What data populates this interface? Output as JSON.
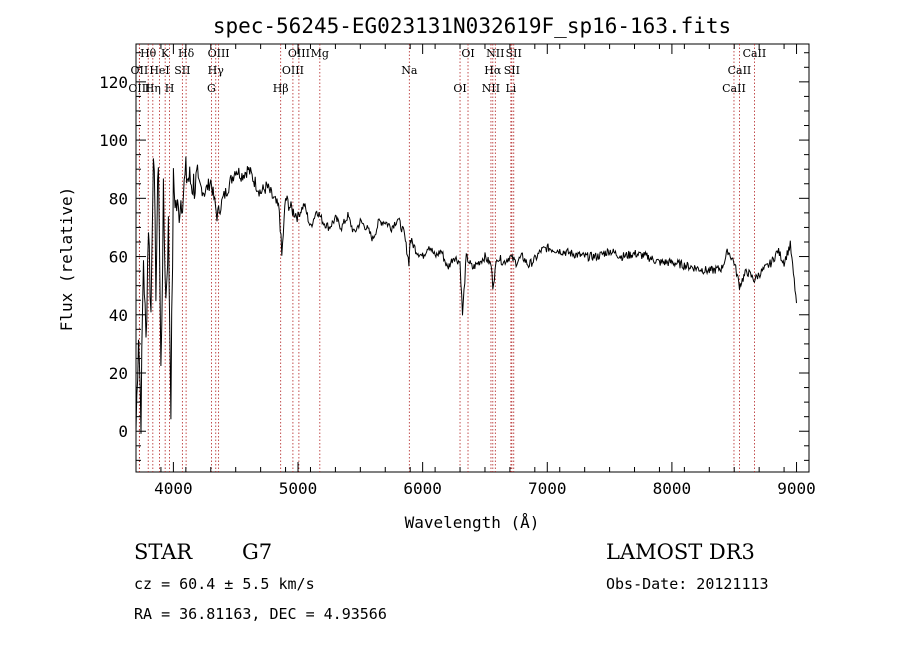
{
  "chart_data": {
    "type": "line",
    "title": "spec-56245-EG023131N032619F_sp16-163.fits",
    "xlabel": "Wavelength (Å)",
    "ylabel": "Flux (relative)",
    "xlim": [
      3700,
      9100
    ],
    "ylim": [
      -14,
      133
    ],
    "xticks": [
      4000,
      5000,
      6000,
      7000,
      8000,
      9000
    ],
    "yticks": [
      0,
      20,
      40,
      60,
      80,
      100,
      120
    ],
    "grid": false,
    "series": [
      {
        "x": [
          3700,
          3720,
          3740,
          3760,
          3780,
          3800,
          3820,
          3840,
          3860,
          3880,
          3900,
          3920,
          3940,
          3960,
          3980,
          4000,
          4020,
          4040,
          4060,
          4080,
          4100,
          4150,
          4200,
          4250,
          4300,
          4350,
          4400,
          4450,
          4500,
          4550,
          4600,
          4650,
          4700,
          4750,
          4800,
          4850,
          4870,
          4900,
          4950,
          5000,
          5050,
          5100,
          5150,
          5200,
          5250,
          5300,
          5350,
          5400,
          5450,
          5500,
          5550,
          5600,
          5650,
          5700,
          5750,
          5800,
          5850,
          5890,
          5900,
          5950,
          6000,
          6050,
          6100,
          6150,
          6200,
          6250,
          6300,
          6320,
          6350,
          6400,
          6450,
          6500,
          6550,
          6563,
          6600,
          6650,
          6700,
          6750,
          6800,
          6850,
          6900,
          6950,
          7000,
          7100,
          7200,
          7300,
          7400,
          7500,
          7600,
          7700,
          7800,
          7900,
          8000,
          8100,
          8200,
          8300,
          8400,
          8450,
          8500,
          8542,
          8600,
          8662,
          8700,
          8750,
          8800,
          8850,
          8900,
          8950,
          9000
        ],
        "y": [
          0,
          35,
          5,
          60,
          30,
          72,
          40,
          100,
          50,
          95,
          20,
          80,
          45,
          70,
          10,
          85,
          78,
          75,
          80,
          82,
          88,
          85,
          85,
          82,
          86,
          74,
          80,
          85,
          90,
          88,
          90,
          86,
          82,
          84,
          80,
          76,
          60,
          80,
          76,
          74,
          78,
          70,
          76,
          72,
          70,
          73,
          70,
          74,
          68,
          72,
          70,
          66,
          72,
          72,
          70,
          73,
          68,
          58,
          66,
          62,
          60,
          64,
          60,
          62,
          56,
          60,
          58,
          40,
          60,
          56,
          58,
          60,
          57,
          50,
          60,
          58,
          60,
          58,
          60,
          57,
          59,
          62,
          63,
          62,
          61,
          60,
          60,
          62,
          60,
          61,
          60,
          58,
          58,
          57,
          56,
          55,
          56,
          62,
          58,
          50,
          55,
          52,
          54,
          56,
          58,
          62,
          58,
          64,
          44
        ]
      }
    ],
    "spectral_lines": [
      {
        "label": "Hθ",
        "wavelength": 3798
      },
      {
        "label": "OII",
        "wavelength": 3727
      },
      {
        "label": "OIII",
        "wavelength": 3727
      },
      {
        "label": "K",
        "wavelength": 3934
      },
      {
        "label": "HeI",
        "wavelength": 3889
      },
      {
        "label": "Hη",
        "wavelength": 3835
      },
      {
        "label": "Hδ",
        "wavelength": 4102
      },
      {
        "label": "SII",
        "wavelength": 4072
      },
      {
        "label": "H",
        "wavelength": 3969
      },
      {
        "label": "OIII",
        "wavelength": 4363
      },
      {
        "label": "Hγ",
        "wavelength": 4340
      },
      {
        "label": "G",
        "wavelength": 4305
      },
      {
        "label": "OIII",
        "wavelength": 5007
      },
      {
        "label": "OIII",
        "wavelength": 4959
      },
      {
        "label": "Hβ",
        "wavelength": 4861
      },
      {
        "label": "Mg",
        "wavelength": 5175
      },
      {
        "label": "Na",
        "wavelength": 5893
      },
      {
        "label": "OI",
        "wavelength": 6300
      },
      {
        "label": "OI",
        "wavelength": 6364
      },
      {
        "label": "Hα",
        "wavelength": 6563
      },
      {
        "label": "NII",
        "wavelength": 6548
      },
      {
        "label": "NII",
        "wavelength": 6583
      },
      {
        "label": "SII",
        "wavelength": 6716
      },
      {
        "label": "Li",
        "wavelength": 6708
      },
      {
        "label": "SII",
        "wavelength": 6731
      },
      {
        "label": "CaII",
        "wavelength": 8542
      },
      {
        "label": "CaII",
        "wavelength": 8498
      },
      {
        "label": "CaII",
        "wavelength": 8662
      }
    ]
  },
  "info": {
    "object_class": "STAR",
    "subclass": "G7",
    "survey": "LAMOST DR3",
    "redshift": "cz =  60.4 ± 5.5 km/s",
    "obs_date": "Obs-Date: 20121113",
    "coords": "RA =  36.81163, DEC =   4.93566"
  }
}
